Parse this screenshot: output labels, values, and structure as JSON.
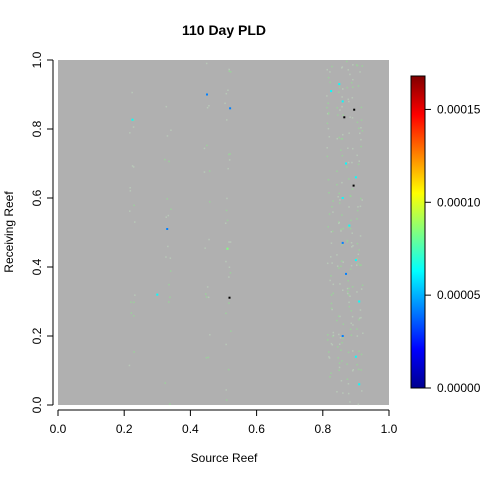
{
  "chart_data": {
    "type": "heatmap",
    "title": "110 Day PLD",
    "xlabel": "Source Reef",
    "ylabel": "Receiving Reef",
    "xlim": [
      0,
      1
    ],
    "ylim": [
      0,
      1
    ],
    "x_ticks": [
      "0.0",
      "0.2",
      "0.4",
      "0.6",
      "0.8",
      "1.0"
    ],
    "y_ticks": [
      "0.0",
      "0.2",
      "0.4",
      "0.6",
      "0.8",
      "1.0"
    ],
    "background_color": "#b0b0b0",
    "colorbar": {
      "min": 0,
      "max": 0.000168,
      "tick_values": [
        0,
        5e-05,
        0.0001,
        0.00015
      ],
      "tick_labels": [
        "0.00000",
        "0.00005",
        "0.00010",
        "0.00015"
      ],
      "colors": [
        "#00008f",
        "#0000ff",
        "#0080ff",
        "#00ffff",
        "#80ff80",
        "#ffff00",
        "#ff8000",
        "#ff0000",
        "#800000"
      ]
    },
    "highlight_columns": [
      {
        "x": 0.22,
        "intensity": 0.25
      },
      {
        "x": 0.33,
        "intensity": 0.25
      },
      {
        "x": 0.45,
        "intensity": 0.25
      },
      {
        "x": 0.51,
        "intensity": 0.4
      },
      {
        "x": 0.82,
        "intensity": 0.7
      },
      {
        "x": 0.85,
        "intensity": 0.85
      },
      {
        "x": 0.88,
        "intensity": 0.85
      },
      {
        "x": 0.91,
        "intensity": 0.7
      }
    ],
    "points": [
      {
        "x": 0.865,
        "y": 0.834,
        "value": 0.000168
      },
      {
        "x": 0.895,
        "y": 0.856,
        "value": 0.000168
      },
      {
        "x": 0.893,
        "y": 0.636,
        "value": 0.000168
      },
      {
        "x": 0.518,
        "y": 0.311,
        "value": 0.000168
      },
      {
        "x": 0.512,
        "y": 0.453,
        "value": 8e-05
      },
      {
        "x": 0.225,
        "y": 0.827,
        "value": 7e-05
      },
      {
        "x": 0.825,
        "y": 0.91,
        "value": 7e-05
      },
      {
        "x": 0.85,
        "y": 0.93,
        "value": 6e-05
      },
      {
        "x": 0.86,
        "y": 0.88,
        "value": 7e-05
      },
      {
        "x": 0.87,
        "y": 0.7,
        "value": 6e-05
      },
      {
        "x": 0.9,
        "y": 0.66,
        "value": 6e-05
      },
      {
        "x": 0.86,
        "y": 0.6,
        "value": 6e-05
      },
      {
        "x": 0.88,
        "y": 0.52,
        "value": 6e-05
      },
      {
        "x": 0.86,
        "y": 0.47,
        "value": 5e-05
      },
      {
        "x": 0.9,
        "y": 0.42,
        "value": 6e-05
      },
      {
        "x": 0.87,
        "y": 0.38,
        "value": 5e-05
      },
      {
        "x": 0.91,
        "y": 0.3,
        "value": 6e-05
      },
      {
        "x": 0.86,
        "y": 0.2,
        "value": 5e-05
      },
      {
        "x": 0.9,
        "y": 0.14,
        "value": 6e-05
      },
      {
        "x": 0.91,
        "y": 0.06,
        "value": 6e-05
      },
      {
        "x": 0.3,
        "y": 0.32,
        "value": 6e-05
      },
      {
        "x": 0.33,
        "y": 0.51,
        "value": 5e-05
      },
      {
        "x": 0.45,
        "y": 0.9,
        "value": 5e-05
      },
      {
        "x": 0.52,
        "y": 0.86,
        "value": 5e-05
      }
    ]
  }
}
